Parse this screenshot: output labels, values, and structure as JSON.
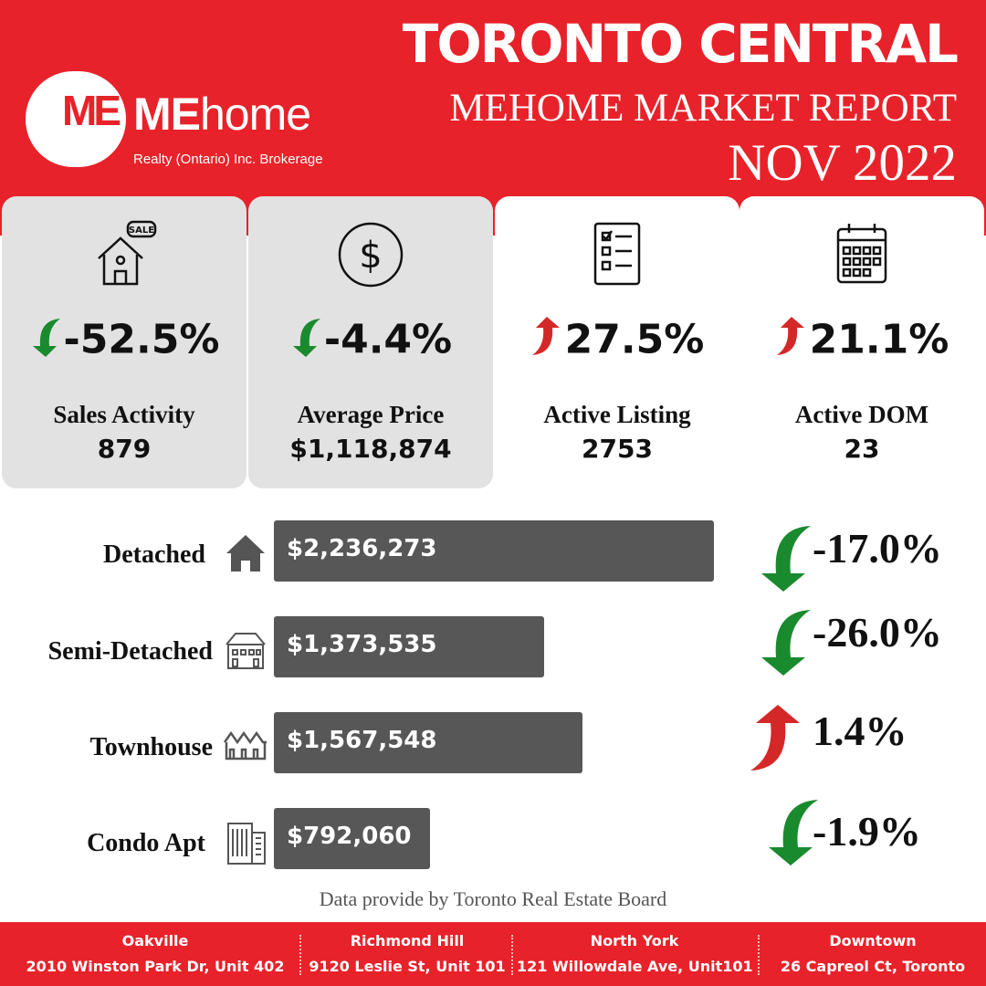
{
  "header": {
    "title": "TORONTO CENTRAL",
    "subtitle": "MEHOME MARKET REPORT",
    "month": "NOV 2022",
    "brand": {
      "logo_text": "ME",
      "name_bold": "ME",
      "name_rest": "home",
      "tagline": "Realty (Ontario) Inc. Brokerage"
    }
  },
  "colors": {
    "brand_red": "#e8222a",
    "down_green": "#1a8a2e",
    "up_red": "#d42828",
    "bar_gray": "#575757",
    "card_gray": "#e2e2e2"
  },
  "stats": [
    {
      "label": "Sales Activity",
      "value": "879",
      "change": "-52.5%",
      "direction": "down",
      "icon": "sale-house-icon"
    },
    {
      "label": "Average Price",
      "value": "$1,118,874",
      "change": "-4.4%",
      "direction": "down",
      "icon": "dollar-icon"
    },
    {
      "label": "Active Listing",
      "value": "2753",
      "change": "27.5%",
      "direction": "up",
      "icon": "checklist-icon"
    },
    {
      "label": "Active DOM",
      "value": "23",
      "change": "21.1%",
      "direction": "up",
      "icon": "calendar-icon"
    }
  ],
  "property_types": [
    {
      "label": "Detached",
      "price_label": "$2,236,273",
      "price": 2236273,
      "change": "-17.0%",
      "direction": "down",
      "icon": "detached-house-icon"
    },
    {
      "label": "Semi-Detached",
      "price_label": "$1,373,535",
      "price": 1373535,
      "change": "-26.0%",
      "direction": "down",
      "icon": "semi-detached-icon"
    },
    {
      "label": "Townhouse",
      "price_label": "$1,567,548",
      "price": 1567548,
      "change": "1.4%",
      "direction": "up",
      "icon": "townhouse-icon"
    },
    {
      "label": "Condo Apt",
      "price_label": "$792,060",
      "price": 792060,
      "change": "-1.9%",
      "direction": "down",
      "icon": "condo-building-icon"
    }
  ],
  "source": "Data provide by Toronto Real Estate Board",
  "offices": [
    {
      "name": "Oakville",
      "address": "2010 Winston Park Dr, Unit 402"
    },
    {
      "name": "Richmond Hill",
      "address": "9120 Leslie St, Unit 101"
    },
    {
      "name": "North York",
      "address": "121 Willowdale Ave, Unit101"
    },
    {
      "name": "Downtown",
      "address": "26 Capreol Ct, Toronto"
    }
  ]
}
